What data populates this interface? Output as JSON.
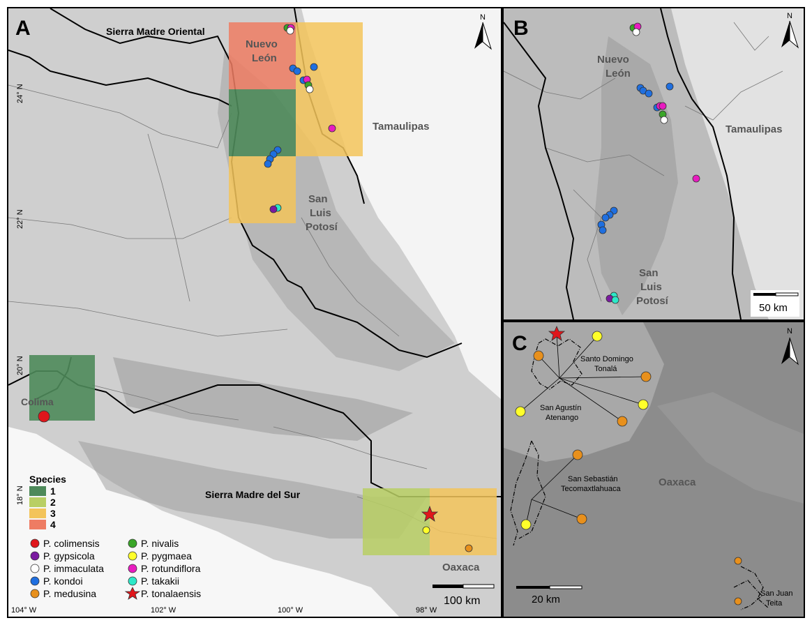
{
  "panels": {
    "a": {
      "label": "A",
      "ranges": [
        "Sierra Madre Oriental",
        "Sierra Madre del Sur"
      ],
      "regions": [
        "Nuevo",
        "León",
        "Tamaulipas",
        "San",
        "Luis",
        "Potosí",
        "Colima",
        "Oaxaca"
      ],
      "lat_ticks": [
        "24° N",
        "22° N",
        "20° N",
        "18° N"
      ],
      "lon_ticks": [
        "104° W",
        "102° W",
        "100° W",
        "98° W"
      ],
      "scale": "100 km",
      "north": "N"
    },
    "b": {
      "label": "B",
      "regions": [
        "Nuevo",
        "León",
        "Tamaulipas",
        "San",
        "Luis",
        "Potosí"
      ],
      "scale": "50 km",
      "north": "N"
    },
    "c": {
      "label": "C",
      "towns": [
        [
          "Santo Domingo",
          "Tonalá"
        ],
        [
          "San Agustín",
          "Atenango"
        ],
        [
          "San Sebastián",
          "Tecomaxtlahuaca"
        ],
        [
          "San Juan",
          "Teita"
        ]
      ],
      "region": "Oaxaca",
      "scale": "20 km",
      "north": "N"
    }
  },
  "legend": {
    "richness_title": "Species",
    "richness_levels": [
      {
        "label": "1",
        "color": "#4e8a5a"
      },
      {
        "label": "2",
        "color": "#b9cf64"
      },
      {
        "label": "3",
        "color": "#f3c45a"
      },
      {
        "label": "4",
        "color": "#ee7c63"
      }
    ],
    "species": [
      {
        "name": "P. colimensis",
        "color": "#e0161b",
        "marker": "circle"
      },
      {
        "name": "P. gypsicola",
        "color": "#7a1aa0",
        "marker": "circle"
      },
      {
        "name": "P. immaculata",
        "color": "#ffffff",
        "marker": "circle"
      },
      {
        "name": "P. kondoi",
        "color": "#1f6fe0",
        "marker": "circle"
      },
      {
        "name": "P. medusina",
        "color": "#e8901c",
        "marker": "circle"
      },
      {
        "name": "P. nivalis",
        "color": "#3aa628",
        "marker": "circle"
      },
      {
        "name": "P. pygmaea",
        "color": "#ffff2a",
        "marker": "circle"
      },
      {
        "name": "P. rotundiflora",
        "color": "#e81cc0",
        "marker": "circle"
      },
      {
        "name": "P. takakii",
        "color": "#2de8c8",
        "marker": "circle"
      },
      {
        "name": "P. tonalaensis",
        "color": "#e0161b",
        "marker": "star"
      }
    ]
  }
}
